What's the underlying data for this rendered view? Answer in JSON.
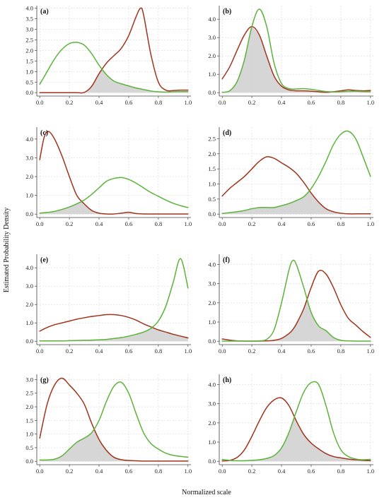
{
  "figure": {
    "ylabel": "Estimated Probability Density",
    "xlabel": "Normalized scale",
    "colors": {
      "red_series": "#a0341c",
      "green_series": "#5cb33a",
      "overlap_fill": "#cfcfcf"
    }
  },
  "chart_data": [
    {
      "label": "(a)",
      "type": "line",
      "xlim": [
        0,
        1
      ],
      "ylim": [
        0,
        4.0
      ],
      "xticks": [
        "0.0",
        "0.2",
        "0.4",
        "0.6",
        "0.8",
        "1.0"
      ],
      "yticks": [
        "0.0",
        "0.5",
        "1.0",
        "1.5",
        "2.0",
        "2.5",
        "3.0",
        "3.5",
        "4.0"
      ],
      "x": [
        0,
        0.05,
        0.1,
        0.15,
        0.2,
        0.25,
        0.3,
        0.35,
        0.4,
        0.45,
        0.5,
        0.55,
        0.6,
        0.65,
        0.68,
        0.7,
        0.75,
        0.8,
        0.85,
        0.9,
        0.95,
        1.0
      ],
      "series": [
        {
          "color": "#a0341c",
          "values": [
            0,
            0,
            0,
            0,
            0,
            0,
            0.01,
            0.3,
            0.9,
            1.4,
            1.75,
            2.1,
            2.7,
            3.6,
            4.0,
            3.7,
            1.8,
            0.5,
            0.12,
            0.1,
            0.12,
            0.12
          ]
        },
        {
          "color": "#5cb33a",
          "values": [
            0.4,
            1.0,
            1.6,
            2.05,
            2.32,
            2.38,
            2.25,
            1.85,
            1.3,
            0.85,
            0.55,
            0.42,
            0.32,
            0.22,
            0.18,
            0.15,
            0.08,
            0.04,
            0.03,
            0.04,
            0.05,
            0.05
          ]
        }
      ]
    },
    {
      "label": "(b)",
      "type": "line",
      "xlim": [
        0,
        1
      ],
      "ylim": [
        0,
        4.6
      ],
      "xticks": [
        "0.0",
        "0.2",
        "0.4",
        "0.6",
        "0.8",
        "1.0"
      ],
      "yticks": [
        "0.0",
        "1.0",
        "2.0",
        "3.0",
        "4.0"
      ],
      "x": [
        0,
        0.05,
        0.1,
        0.15,
        0.2,
        0.25,
        0.3,
        0.35,
        0.4,
        0.45,
        0.5,
        0.55,
        0.6,
        0.65,
        0.7,
        0.75,
        0.8,
        0.85,
        0.9,
        0.95,
        1.0
      ],
      "series": [
        {
          "color": "#a0341c",
          "values": [
            0.75,
            1.4,
            2.3,
            3.15,
            3.6,
            3.15,
            2.0,
            0.9,
            0.35,
            0.15,
            0.1,
            0.1,
            0.08,
            0.05,
            0.02,
            0.05,
            0.1,
            0.15,
            0.12,
            0.1,
            0.12
          ]
        },
        {
          "color": "#5cb33a",
          "values": [
            0.02,
            0.1,
            0.6,
            1.8,
            3.6,
            4.55,
            3.6,
            1.6,
            0.5,
            0.22,
            0.2,
            0.22,
            0.18,
            0.12,
            0.06,
            0.04,
            0.05,
            0.07,
            0.08,
            0.06,
            0.05
          ]
        }
      ]
    },
    {
      "label": "(c)",
      "type": "line",
      "xlim": [
        0,
        1
      ],
      "ylim": [
        0,
        4.5
      ],
      "xticks": [
        "0.0",
        "0.2",
        "0.4",
        "0.6",
        "0.8",
        "1.0"
      ],
      "yticks": [
        "0.0",
        "1.0",
        "2.0",
        "3.0",
        "4.0"
      ],
      "x": [
        0,
        0.03,
        0.06,
        0.1,
        0.15,
        0.2,
        0.25,
        0.3,
        0.35,
        0.4,
        0.45,
        0.5,
        0.55,
        0.6,
        0.65,
        0.7,
        0.75,
        0.8,
        0.85,
        0.9,
        0.95,
        1.0
      ],
      "series": [
        {
          "color": "#a0341c",
          "values": [
            2.9,
            4.1,
            4.4,
            4.0,
            3.1,
            2.0,
            1.0,
            0.55,
            0.2,
            0.05,
            0.01,
            0.01,
            0.05,
            0.1,
            0.03,
            0.01,
            0.01,
            0.01,
            0.01,
            0.01,
            0.01,
            0.01
          ]
        },
        {
          "color": "#5cb33a",
          "values": [
            0.05,
            0.08,
            0.1,
            0.15,
            0.25,
            0.38,
            0.55,
            0.75,
            1.05,
            1.4,
            1.75,
            1.9,
            1.95,
            1.85,
            1.65,
            1.4,
            1.15,
            0.95,
            0.75,
            0.58,
            0.45,
            0.35
          ]
        }
      ]
    },
    {
      "label": "(d)",
      "type": "line",
      "xlim": [
        0,
        1
      ],
      "ylim": [
        0,
        2.8
      ],
      "xticks": [
        "0.0",
        "0.2",
        "0.4",
        "0.6",
        "0.8",
        "1.0"
      ],
      "yticks": [
        "0.0",
        "0.5",
        "1.0",
        "1.5",
        "2.0",
        "2.5"
      ],
      "x": [
        0,
        0.05,
        0.1,
        0.15,
        0.2,
        0.25,
        0.3,
        0.35,
        0.4,
        0.45,
        0.5,
        0.55,
        0.6,
        0.65,
        0.7,
        0.75,
        0.8,
        0.85,
        0.9,
        0.95,
        1.0
      ],
      "series": [
        {
          "color": "#a0341c",
          "values": [
            0.6,
            0.85,
            1.05,
            1.25,
            1.5,
            1.75,
            1.9,
            1.85,
            1.7,
            1.55,
            1.35,
            1.05,
            0.7,
            0.4,
            0.18,
            0.08,
            0.03,
            0.01,
            0.01,
            0.01,
            0.01
          ]
        },
        {
          "color": "#5cb33a",
          "values": [
            0.02,
            0.05,
            0.08,
            0.12,
            0.18,
            0.22,
            0.22,
            0.22,
            0.28,
            0.35,
            0.45,
            0.58,
            0.85,
            1.25,
            1.75,
            2.3,
            2.65,
            2.75,
            2.5,
            1.9,
            1.25
          ]
        }
      ]
    },
    {
      "label": "(e)",
      "type": "line",
      "xlim": [
        0,
        1
      ],
      "ylim": [
        0,
        4.6
      ],
      "xticks": [
        "0.0",
        "0.2",
        "0.4",
        "0.6",
        "0.8",
        "1.0"
      ],
      "yticks": [
        "0.0",
        "1.0",
        "2.0",
        "3.0",
        "4.0"
      ],
      "x": [
        0,
        0.05,
        0.1,
        0.15,
        0.2,
        0.25,
        0.3,
        0.35,
        0.4,
        0.45,
        0.5,
        0.55,
        0.6,
        0.65,
        0.7,
        0.75,
        0.8,
        0.85,
        0.9,
        0.95,
        1.0
      ],
      "series": [
        {
          "color": "#a0341c",
          "values": [
            0.55,
            0.75,
            0.9,
            1.0,
            1.1,
            1.2,
            1.28,
            1.35,
            1.4,
            1.45,
            1.45,
            1.4,
            1.3,
            1.15,
            0.95,
            0.78,
            0.62,
            0.5,
            0.38,
            0.28,
            0.18
          ]
        },
        {
          "color": "#5cb33a",
          "values": [
            0.02,
            0.02,
            0.02,
            0.02,
            0.03,
            0.04,
            0.05,
            0.06,
            0.08,
            0.1,
            0.15,
            0.2,
            0.28,
            0.38,
            0.5,
            0.7,
            1.1,
            1.9,
            3.2,
            4.5,
            2.9
          ]
        }
      ]
    },
    {
      "label": "(f)",
      "type": "line",
      "xlim": [
        0,
        1
      ],
      "ylim": [
        0,
        4.4
      ],
      "xticks": [
        "0.0",
        "0.2",
        "0.4",
        "0.6",
        "0.8",
        "1.0"
      ],
      "yticks": [
        "0.0",
        "1.0",
        "2.0",
        "3.0",
        "4.0"
      ],
      "x": [
        0,
        0.05,
        0.1,
        0.15,
        0.2,
        0.25,
        0.3,
        0.35,
        0.4,
        0.45,
        0.475,
        0.5,
        0.55,
        0.6,
        0.65,
        0.7,
        0.75,
        0.8,
        0.85,
        0.9,
        0.95,
        1.0
      ],
      "series": [
        {
          "color": "#a0341c",
          "values": [
            0.12,
            0.06,
            0.02,
            0.01,
            0.01,
            0.01,
            0.02,
            0.05,
            0.15,
            0.4,
            0.6,
            0.9,
            1.7,
            2.8,
            3.65,
            3.5,
            2.8,
            1.9,
            1.2,
            0.85,
            0.5,
            0.2
          ]
        },
        {
          "color": "#5cb33a",
          "values": [
            0.01,
            0.01,
            0.01,
            0.01,
            0.01,
            0.02,
            0.1,
            0.6,
            2.0,
            3.7,
            4.2,
            4.0,
            2.8,
            1.5,
            0.8,
            0.55,
            0.2,
            0.05,
            0.02,
            0.01,
            0.01,
            0.01
          ]
        }
      ]
    },
    {
      "label": "(g)",
      "type": "line",
      "xlim": [
        0,
        1
      ],
      "ylim": [
        0,
        3.1
      ],
      "xticks": [
        "0.0",
        "0.2",
        "0.4",
        "0.6",
        "0.8",
        "1.0"
      ],
      "yticks": [
        "0.0",
        "0.5",
        "1.0",
        "1.5",
        "2.0",
        "2.5",
        "3.0"
      ],
      "x": [
        0,
        0.05,
        0.1,
        0.15,
        0.2,
        0.25,
        0.3,
        0.35,
        0.4,
        0.45,
        0.5,
        0.55,
        0.6,
        0.65,
        0.7,
        0.75,
        0.8,
        0.85,
        0.9,
        0.95,
        1.0
      ],
      "series": [
        {
          "color": "#a0341c",
          "values": [
            0.85,
            2.1,
            2.8,
            3.05,
            2.8,
            2.5,
            2.1,
            1.4,
            0.8,
            0.4,
            0.15,
            0.06,
            0.03,
            0.02,
            0.01,
            0.01,
            0.01,
            0.01,
            0.01,
            0.01,
            0.01
          ]
        },
        {
          "color": "#5cb33a",
          "values": [
            0.05,
            0.05,
            0.08,
            0.2,
            0.45,
            0.7,
            0.85,
            1.05,
            1.5,
            2.2,
            2.75,
            2.9,
            2.5,
            1.75,
            1.05,
            0.65,
            0.45,
            0.3,
            0.22,
            0.18,
            0.15
          ]
        }
      ]
    },
    {
      "label": "(h)",
      "type": "line",
      "xlim": [
        0,
        1
      ],
      "ylim": [
        0,
        4.4
      ],
      "xticks": [
        "0.0",
        "0.2",
        "0.4",
        "0.6",
        "0.8",
        "1.0"
      ],
      "yticks": [
        "0.0",
        "1.0",
        "2.0",
        "3.0",
        "4.0"
      ],
      "x": [
        0,
        0.05,
        0.1,
        0.15,
        0.2,
        0.25,
        0.3,
        0.35,
        0.4,
        0.45,
        0.5,
        0.55,
        0.6,
        0.65,
        0.7,
        0.75,
        0.8,
        0.85,
        0.9,
        0.95,
        1.0
      ],
      "series": [
        {
          "color": "#a0341c",
          "values": [
            0.02,
            0.05,
            0.2,
            0.6,
            1.3,
            2.1,
            2.8,
            3.2,
            3.3,
            2.9,
            2.1,
            1.4,
            0.95,
            0.65,
            0.4,
            0.25,
            0.18,
            0.12,
            0.08,
            0.05,
            0.03
          ]
        },
        {
          "color": "#5cb33a",
          "values": [
            0.1,
            0.05,
            0.03,
            0.03,
            0.05,
            0.08,
            0.15,
            0.3,
            0.7,
            1.5,
            2.6,
            3.6,
            4.1,
            4.0,
            2.9,
            1.5,
            0.6,
            0.25,
            0.12,
            0.08,
            0.1
          ]
        }
      ]
    }
  ]
}
